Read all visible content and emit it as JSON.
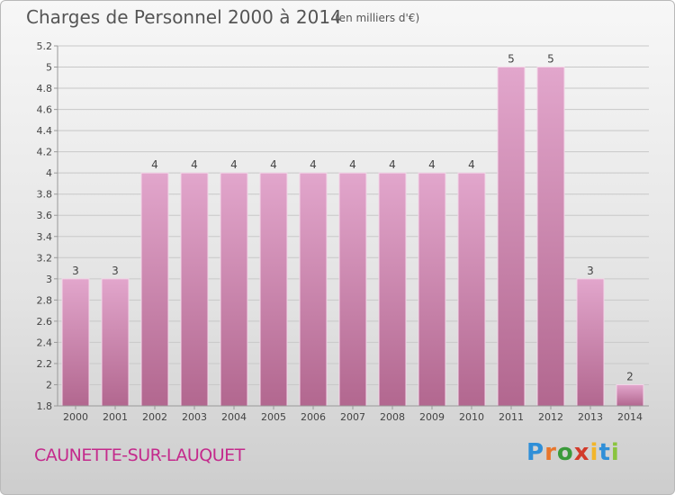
{
  "chart_data": {
    "type": "bar",
    "title": "Charges de Personnel 2000 à 2014",
    "subtitle": "(en milliers d'€)",
    "categories": [
      "2000",
      "2001",
      "2002",
      "2003",
      "2004",
      "2005",
      "2006",
      "2007",
      "2008",
      "2009",
      "2010",
      "2011",
      "2012",
      "2013",
      "2014"
    ],
    "values": [
      3,
      3,
      4,
      4,
      4,
      4,
      4,
      4,
      4,
      4,
      4,
      5,
      5,
      3,
      2
    ],
    "data_labels": [
      "3",
      "3",
      "4",
      "4",
      "4",
      "4",
      "4",
      "4",
      "4",
      "4",
      "4",
      "5",
      "5",
      "3",
      "2"
    ],
    "bar_heights_on_axis": [
      3.0,
      3.0,
      4.0,
      4.0,
      4.0,
      4.0,
      4.0,
      4.0,
      4.0,
      4.0,
      4.0,
      5.0,
      5.0,
      3.0,
      2.0
    ],
    "ylim": [
      1.8,
      5.2
    ],
    "yticks": [
      "1.8",
      "2",
      "2.2",
      "2.4",
      "2.6",
      "2.8",
      "3",
      "3.2",
      "3.4",
      "3.6",
      "3.8",
      "4",
      "4.2",
      "4.4",
      "4.6",
      "4.8",
      "5",
      "5.2"
    ],
    "ytick_values": [
      1.8,
      2.0,
      2.2,
      2.4,
      2.6,
      2.8,
      3.0,
      3.2,
      3.4,
      3.6,
      3.8,
      4.0,
      4.2,
      4.4,
      4.6,
      4.8,
      5.0,
      5.2
    ],
    "grid": true,
    "legend": "none",
    "colors": {
      "bar_top": "#e2a6cc",
      "bar_bottom": "#b2678f",
      "grid": "#c8c8c8",
      "axis": "#999999"
    }
  },
  "footer": {
    "city": "CAUNETTE-SUR-LAUQUET",
    "brand_letters": [
      {
        "ch": "P",
        "color": "#2f8fd8"
      },
      {
        "ch": "r",
        "color": "#e8762c"
      },
      {
        "ch": "o",
        "color": "#3a9a3a"
      },
      {
        "ch": "x",
        "color": "#d23a2a"
      },
      {
        "ch": "i",
        "color": "#f2b52a"
      },
      {
        "ch": "t",
        "color": "#2f8fd8"
      },
      {
        "ch": "i",
        "color": "#8ac43f"
      }
    ]
  }
}
